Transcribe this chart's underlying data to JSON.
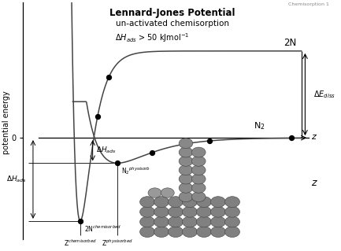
{
  "title1": "Lennard-Jones Potential",
  "title2": "un-activated chemisorption",
  "subtitle": "\\Delta H_{ads} > 50 kJmol^{-1}",
  "watermark": "Chemisorption 1",
  "ylabel": "potential energy",
  "label_2N": "2N",
  "label_N2": "N$_2$",
  "label_dE_diss": "\\Delta E_{diss}",
  "label_dH_ads": "\\Delta H_{ads}",
  "label_dH_ads_left": "\\Delta H_{ads}",
  "label_2N_chemisorbed": "2N$^{chemisorbed}$",
  "label_N2_physisorbed": "N$_2$$^{physisorb}$",
  "label_Z_chemisorbed": "Z$^{chemisorbed}$",
  "label_Z_physisorbed": "Z$^{physisorbed}$",
  "label_z_axis": "z",
  "label_z_right": "z",
  "bg_color": "#ffffff",
  "curve_color": "#444444",
  "x_range": [
    -1.0,
    11.5
  ],
  "y_range": [
    -5.8,
    7.5
  ],
  "y_zero": 0.0,
  "y_2N_inf": 4.8,
  "y_chemi_min": -4.6,
  "y_physi_min": -1.4,
  "x_chemi_min": 1.3,
  "x_physi_min": 2.8,
  "x_right": 10.2,
  "sphere_color": "#808080",
  "sphere_ec": "#404040"
}
